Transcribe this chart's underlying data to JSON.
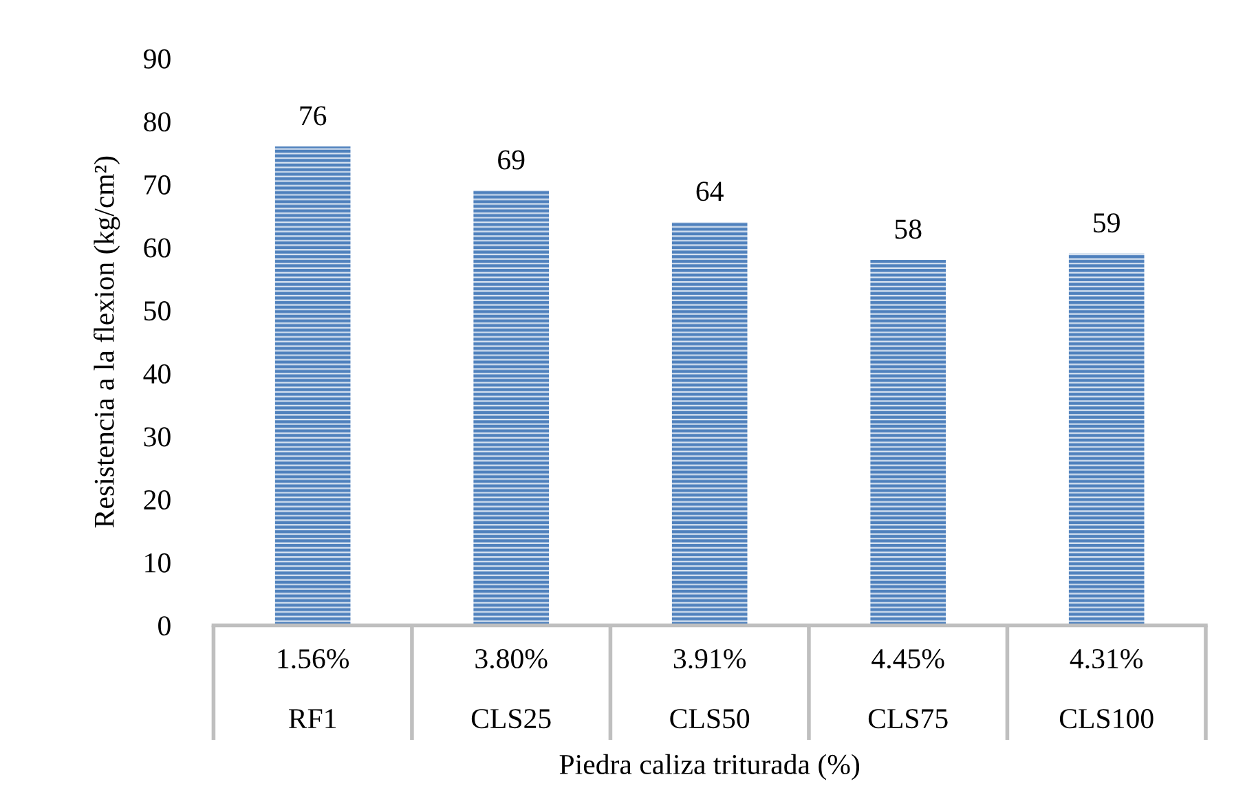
{
  "chart_data": {
    "type": "bar",
    "xlabel": "Piedra caliza triturada (%)",
    "ylabel": "Resistencia a la flexion (kg/cm²)",
    "categories": [
      "1.56%\n\nRF1",
      "3.80%\n\nCLS25",
      "3.91%\n\nCLS50",
      "4.45%\n\nCLS75",
      "4.31%\n\nCLS100"
    ],
    "values": [
      76,
      69,
      64,
      58,
      59
    ],
    "color": "#4f81bd",
    "data_labels": true,
    "ylim": [
      0,
      90
    ],
    "yticks": [
      0,
      10,
      20,
      30,
      40,
      50,
      60,
      70,
      80,
      90
    ],
    "grid": false,
    "legend": false
  }
}
